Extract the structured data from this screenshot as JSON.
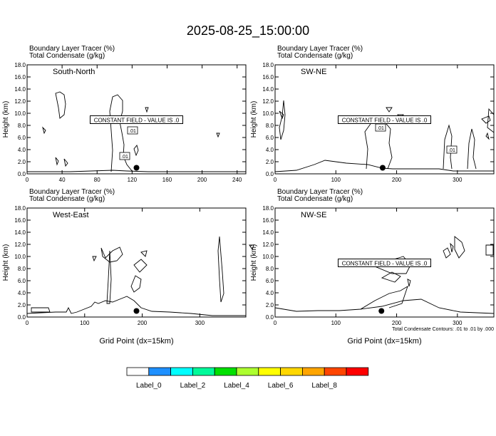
{
  "title": "2025-08-25_15:00:00",
  "chart_data": [
    {
      "type": "contour",
      "panel_label": "South-North",
      "line1": "Boundary Layer Tracer   (%)",
      "line2": "Total Condensate   (g/kg)",
      "ylabel": "Height (km)",
      "xlabel": "",
      "xlim": [
        0,
        250
      ],
      "xticks": [
        0,
        40,
        80,
        120,
        160,
        200,
        240
      ],
      "ylim": [
        0,
        18
      ],
      "yticks": [
        "0.0",
        "2.0",
        "4.0",
        "6.0",
        "8.0",
        "10.0",
        "12.0",
        "14.0",
        "16.0",
        "18.0"
      ],
      "constant_field_label": "CONSTANT FIELD - VALUE IS .0",
      "contour_labels": [
        ".01",
        ".01"
      ],
      "marker": {
        "x": 125,
        "y": 1.0
      }
    },
    {
      "type": "contour",
      "panel_label": "SW-NE",
      "line1": "Boundary Layer Tracer   (%)",
      "line2": "Total Condensate   (g/kg)",
      "ylabel": "Height (km)",
      "xlabel": "",
      "xlim": [
        0,
        360
      ],
      "xticks": [
        0,
        100,
        200,
        300
      ],
      "ylim": [
        0,
        18
      ],
      "yticks": [
        "0.0",
        "2.0",
        "4.0",
        "6.0",
        "8.0",
        "10.0",
        "12.0",
        "14.0",
        "16.0",
        "18.0"
      ],
      "constant_field_label": "CONSTANT FIELD - VALUE IS .0",
      "contour_labels": [
        ".01",
        ".01"
      ],
      "marker": {
        "x": 177,
        "y": 1.0
      }
    },
    {
      "type": "contour",
      "panel_label": "West-East",
      "line1": "Boundary Layer Tracer   (%)",
      "line2": "Total Condensate   (g/kg)",
      "ylabel": "Height (km)",
      "xlabel": "Grid Point (dx=15km)",
      "xlim": [
        0,
        380
      ],
      "xticks": [
        0,
        100,
        200,
        300
      ],
      "ylim": [
        0,
        18
      ],
      "yticks": [
        "0.0",
        "2.0",
        "4.0",
        "6.0",
        "8.0",
        "10.0",
        "12.0",
        "14.0",
        "16.0",
        "18.0"
      ],
      "constant_field_label": "",
      "contour_labels": [],
      "marker": {
        "x": 190,
        "y": 1.0
      }
    },
    {
      "type": "contour",
      "panel_label": "NW-SE",
      "line1": "Boundary Layer Tracer   (%)",
      "line2": "Total Condensate   (g/kg)",
      "ylabel": "Height (km)",
      "xlabel": "Grid Point (dx=15km)",
      "xlim": [
        0,
        360
      ],
      "xticks": [
        0,
        100,
        200,
        300
      ],
      "ylim": [
        0,
        18
      ],
      "yticks": [
        "0.0",
        "2.0",
        "4.0",
        "6.0",
        "8.0",
        "10.0",
        "12.0",
        "14.0",
        "16.0",
        "18.0"
      ],
      "constant_field_label": "CONSTANT FIELD - VALUE IS .0",
      "contour_labels": [],
      "marker": {
        "x": 175,
        "y": 1.0
      },
      "footnote": "Total Condensate Contours: .01 to .01 by .000"
    }
  ],
  "colorbar": {
    "colors": [
      "#ffffff",
      "#1e90ff",
      "#00ffff",
      "#00fa9a",
      "#00e000",
      "#adff2f",
      "#ffff00",
      "#ffd700",
      "#ffa500",
      "#ff4500",
      "#ff0000"
    ],
    "labels": [
      "Label_0",
      "Label_2",
      "Label_4",
      "Label_6",
      "Label_8"
    ]
  }
}
